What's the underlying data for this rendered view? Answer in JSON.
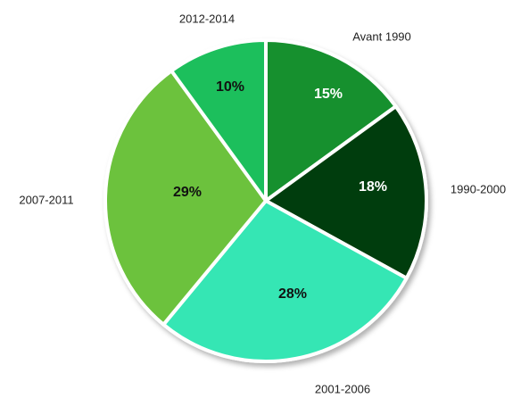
{
  "chart_data": {
    "type": "pie",
    "categories": [
      "Avant 1990",
      "1990-2000",
      "2001-2006",
      "2007-2011",
      "2012-2014"
    ],
    "values": [
      15,
      18,
      28,
      29,
      10
    ],
    "value_labels": [
      "15%",
      "18%",
      "28%",
      "29%",
      "10%"
    ],
    "colors": [
      "#12902e",
      "#053d0c",
      "#36e6b4",
      "#6cc23e",
      "#1dbf5c"
    ]
  }
}
